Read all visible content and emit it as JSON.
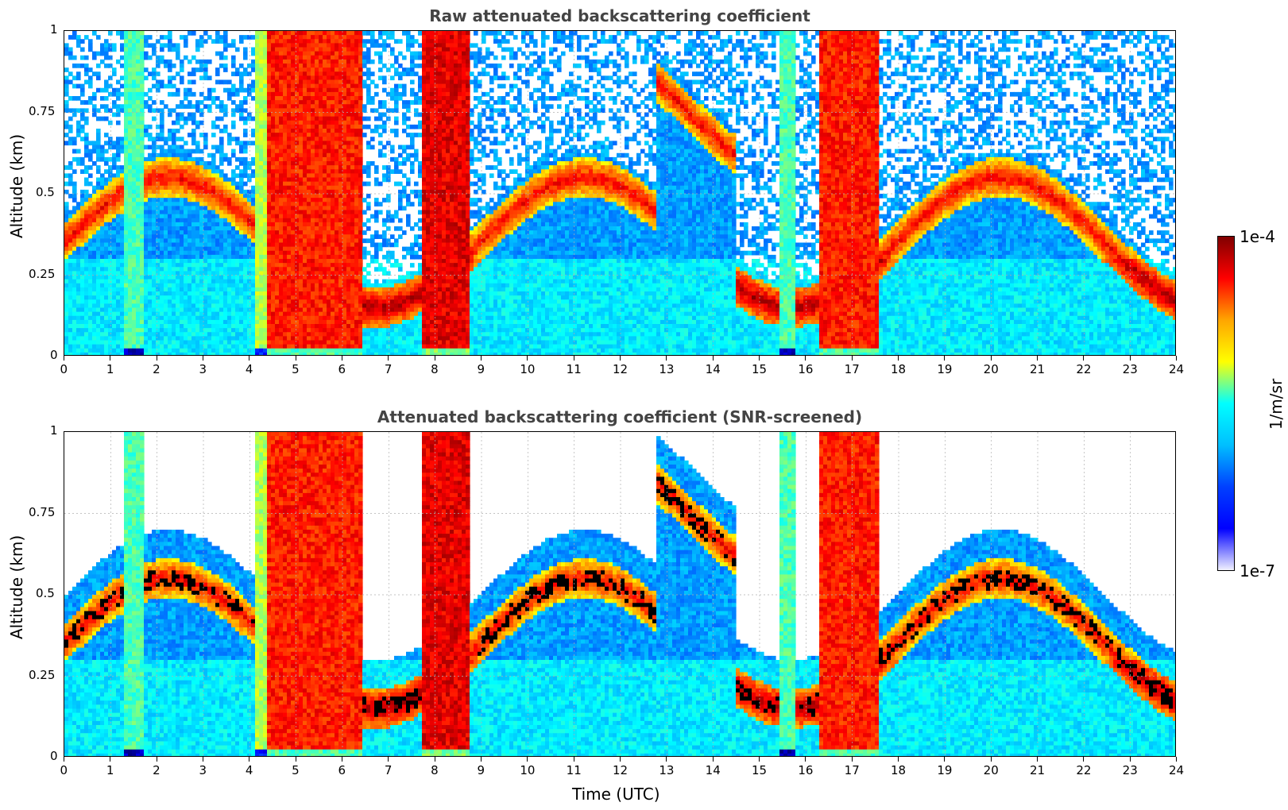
{
  "chart_data": [
    {
      "type": "heatmap",
      "title": "Raw attenuated backscattering coefficient",
      "xlabel": "",
      "ylabel": "Altitude (km)",
      "xlim": [
        0,
        24
      ],
      "ylim": [
        0,
        1
      ],
      "x_ticks": [
        "0",
        "1",
        "2",
        "3",
        "4",
        "5",
        "6",
        "7",
        "8",
        "9",
        "10",
        "11",
        "12",
        "13",
        "14",
        "15",
        "16",
        "17",
        "18",
        "19",
        "20",
        "21",
        "22",
        "23",
        "24"
      ],
      "y_ticks": [
        "0",
        "0.25",
        "0.5",
        "0.75",
        "1"
      ],
      "grid": true,
      "bands": [
        {
          "x": [
            1.3,
            1.7
          ],
          "level": 0.45
        },
        {
          "x": [
            4.1,
            4.4
          ],
          "level": 0.55
        },
        {
          "x": [
            4.4,
            6.4
          ],
          "level": 0.85
        },
        {
          "x": [
            7.7,
            8.7
          ],
          "level": 0.9
        },
        {
          "x": [
            15.4,
            15.8
          ],
          "level": 0.45
        },
        {
          "x": [
            16.3,
            17.6
          ],
          "level": 0.85
        }
      ]
    },
    {
      "type": "heatmap",
      "title": "Attenuated backscattering coefficient (SNR-screened)",
      "xlabel": "Time (UTC)",
      "ylabel": "Altitude (km)",
      "xlim": [
        0,
        24
      ],
      "ylim": [
        0,
        1
      ],
      "x_ticks": [
        "0",
        "1",
        "2",
        "3",
        "4",
        "5",
        "6",
        "7",
        "8",
        "9",
        "10",
        "11",
        "12",
        "13",
        "14",
        "15",
        "16",
        "17",
        "18",
        "19",
        "20",
        "21",
        "22",
        "23",
        "24"
      ],
      "y_ticks": [
        "0",
        "0.25",
        "0.5",
        "0.75",
        "1"
      ],
      "grid": true
    }
  ],
  "colorbar": {
    "label": "1/m/sr",
    "max_label": "1e-4",
    "min_label": "1e-7",
    "colormap": "jet",
    "stops": [
      "#800000",
      "#ff0000",
      "#ffa500",
      "#ffff00",
      "#00ffff",
      "#00bfff",
      "#0040ff",
      "#0000ff",
      "#f0f0ff"
    ]
  }
}
